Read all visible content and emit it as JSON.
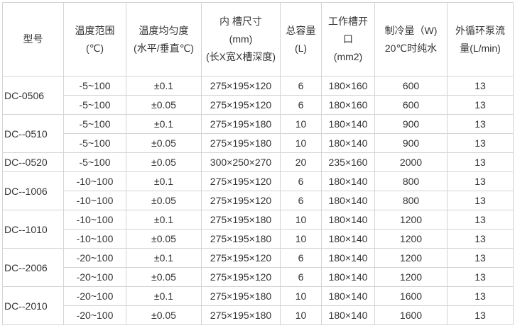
{
  "headers": [
    [
      "型号"
    ],
    [
      "温度范围",
      "(℃)"
    ],
    [
      "温度均匀度",
      "(水平/垂直℃)"
    ],
    [
      "内 槽尺寸",
      "(mm)",
      "(长X宽X槽深度)"
    ],
    [
      "总容量",
      "(L)"
    ],
    [
      "工作槽开",
      "口",
      "(mm2)"
    ],
    [
      "制冷量（W)",
      "20℃时纯水"
    ],
    [
      "外循环泵流",
      "量(L/min)"
    ]
  ],
  "groups": [
    {
      "model": "DC-0506",
      "rows": [
        [
          "-5~100",
          "±0.1",
          "275×195×120",
          "6",
          "180×160",
          "600",
          "13"
        ],
        [
          "-5~100",
          "±0.05",
          "275×195×120",
          "6",
          "180×160",
          "600",
          "13"
        ]
      ]
    },
    {
      "model": "DC--0510",
      "rows": [
        [
          "-5~100",
          "±0.1",
          "275×195×180",
          "10",
          "180×140",
          "900",
          "13"
        ],
        [
          "-5~100",
          "±0.05",
          "275×195×180",
          "10",
          "180×140",
          "900",
          "13"
        ]
      ]
    },
    {
      "model": "DC--0520",
      "rows": [
        [
          "-5~100",
          "±0.05",
          "300×250×270",
          "20",
          "235×160",
          "2000",
          "13"
        ]
      ]
    },
    {
      "model": "DC--1006",
      "rows": [
        [
          "-10~100",
          "±0.1",
          "275×195×120",
          "6",
          "180×140",
          "800",
          "13"
        ],
        [
          "-10~100",
          "±0.05",
          "275×195×120",
          "6",
          "180×140",
          "800",
          "13"
        ]
      ]
    },
    {
      "model": "DC--1010",
      "rows": [
        [
          "-10~100",
          "±0.1",
          "275×195×180",
          "10",
          "180×140",
          "1200",
          "13"
        ],
        [
          "-10~100",
          "±0.05",
          "275×195×180",
          "10",
          "180×140",
          "1200",
          "13"
        ]
      ]
    },
    {
      "model": "DC--2006",
      "rows": [
        [
          "-20~100",
          "±0.1",
          "275×195×120",
          "6",
          "180×140",
          "1200",
          "13"
        ],
        [
          "-20~100",
          "±0.05",
          "275×195×120",
          "6",
          "180×140",
          "1200",
          "13"
        ]
      ]
    },
    {
      "model": "DC--2010",
      "rows": [
        [
          "-20~100",
          "±0.1",
          "275×195×180",
          "10",
          "180×140",
          "1600",
          "13"
        ],
        [
          "-20~100",
          "±0.05",
          "275×195×180",
          "10",
          "180×140",
          "1600",
          "13"
        ]
      ]
    }
  ]
}
